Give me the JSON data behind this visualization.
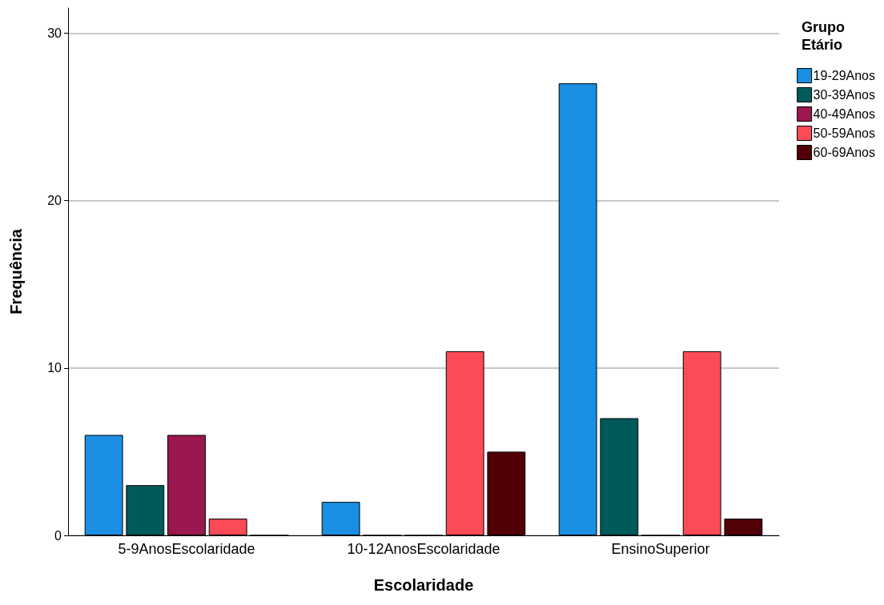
{
  "chart_data": {
    "type": "bar",
    "xlabel": "Escolaridade",
    "ylabel": "Frequência",
    "legend_title": "Grupo Etário",
    "categories": [
      "5-9AnosEscolaridade",
      "10-12AnosEscolaridade",
      "EnsinoSuperior"
    ],
    "series": [
      {
        "name": "19-29Anos",
        "color": "#1a8fe3",
        "values": [
          6,
          2,
          27
        ]
      },
      {
        "name": "30-39Anos",
        "color": "#005a5a",
        "values": [
          3,
          0,
          7
        ]
      },
      {
        "name": "40-49Anos",
        "color": "#9b174f",
        "values": [
          6,
          0,
          0
        ]
      },
      {
        "name": "50-59Anos",
        "color": "#fa4b57",
        "values": [
          1,
          11,
          11
        ]
      },
      {
        "name": "60-69Anos",
        "color": "#520008",
        "values": [
          0,
          5,
          1
        ]
      }
    ],
    "ylim": [
      0,
      31.5
    ],
    "yticks": [
      0,
      10,
      20,
      30
    ],
    "grid": "y",
    "legend": "top right"
  }
}
